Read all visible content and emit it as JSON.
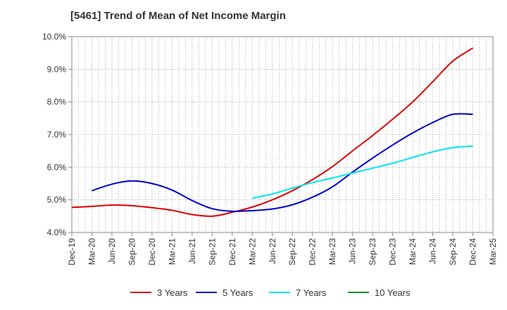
{
  "chart_data": {
    "type": "line",
    "title": "[5461]  Trend of Mean of Net Income Margin",
    "xlabel": "",
    "ylabel": "",
    "x": [
      "Dec-19",
      "Mar-20",
      "Jun-20",
      "Sep-20",
      "Dec-20",
      "Mar-21",
      "Jun-21",
      "Sep-21",
      "Dec-21",
      "Mar-22",
      "Jun-22",
      "Sep-22",
      "Dec-22",
      "Mar-23",
      "Jun-23",
      "Sep-23",
      "Dec-23",
      "Mar-24",
      "Jun-24",
      "Sep-24",
      "Dec-24",
      "Mar-25"
    ],
    "ylim": [
      4.0,
      10.0
    ],
    "yticks": [
      "4.0%",
      "5.0%",
      "6.0%",
      "7.0%",
      "8.0%",
      "9.0%",
      "10.0%"
    ],
    "grid": true,
    "legend_position": "bottom",
    "series": [
      {
        "name": "3 Years",
        "color": "#dd0000",
        "values": [
          4.77,
          4.8,
          4.84,
          4.82,
          4.76,
          4.68,
          4.55,
          4.5,
          4.62,
          4.78,
          5.0,
          5.28,
          5.62,
          6.02,
          6.5,
          6.97,
          7.47,
          8.0,
          8.62,
          9.25,
          9.65,
          null
        ]
      },
      {
        "name": "5 Years",
        "color": "#0000cc",
        "values": [
          null,
          5.28,
          5.48,
          5.58,
          5.5,
          5.3,
          4.98,
          4.73,
          4.65,
          4.67,
          4.72,
          4.85,
          5.08,
          5.4,
          5.85,
          6.28,
          6.68,
          7.05,
          7.37,
          7.62,
          7.62,
          null
        ]
      },
      {
        "name": "7 Years",
        "color": "#00e5ee",
        "values": [
          null,
          null,
          null,
          null,
          null,
          null,
          null,
          null,
          null,
          5.05,
          5.18,
          5.36,
          5.53,
          5.67,
          5.82,
          5.97,
          6.12,
          6.3,
          6.47,
          6.6,
          6.65,
          null
        ]
      },
      {
        "name": "10 Years",
        "color": "#228b22",
        "values": [
          null,
          null,
          null,
          null,
          null,
          null,
          null,
          null,
          null,
          null,
          null,
          null,
          null,
          null,
          null,
          null,
          null,
          null,
          null,
          null,
          null,
          null
        ]
      }
    ]
  }
}
